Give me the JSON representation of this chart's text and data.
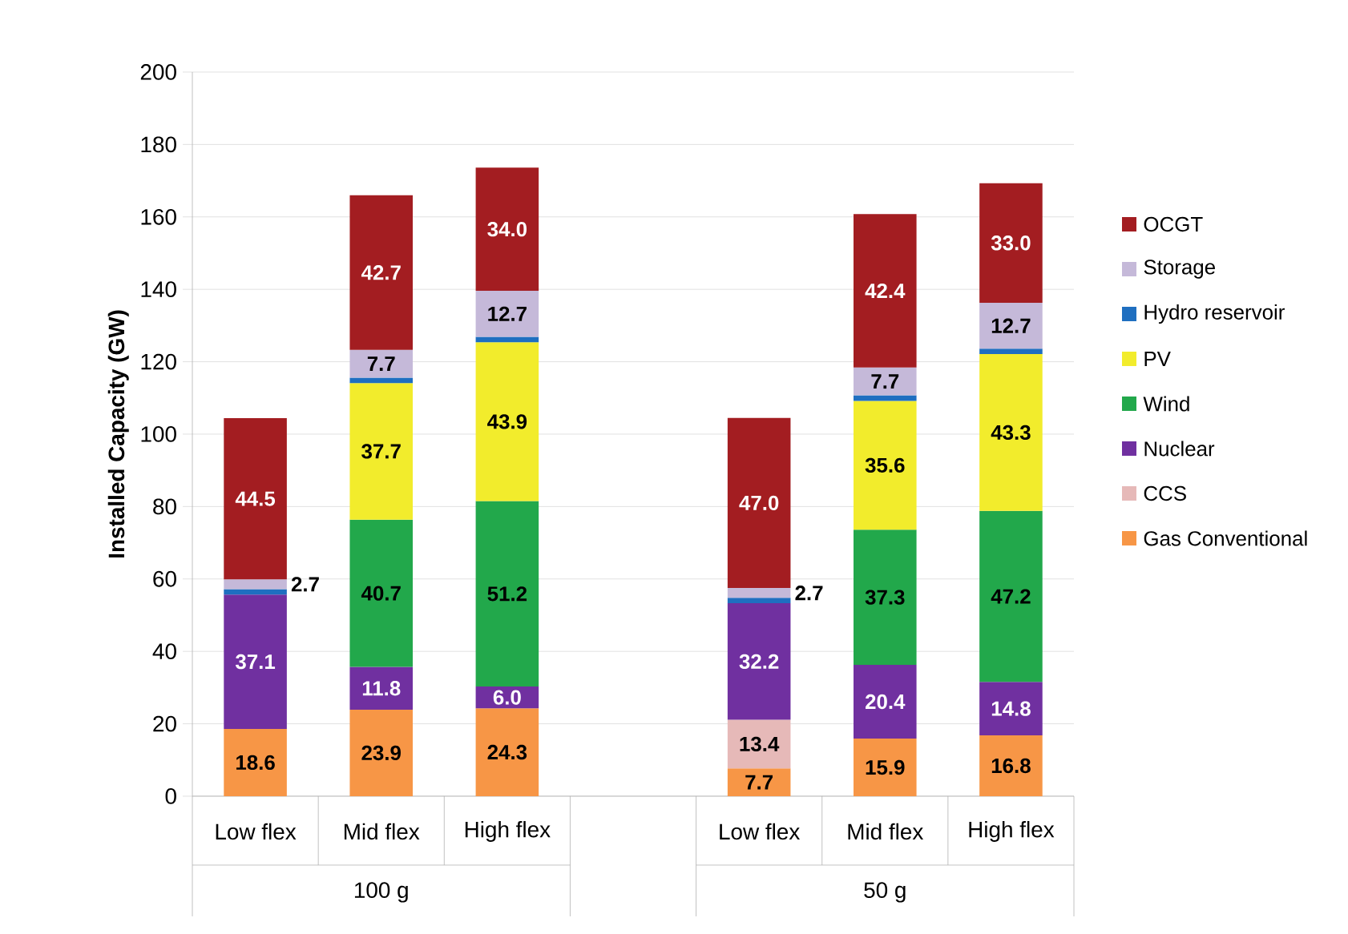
{
  "chart_data": {
    "type": "bar",
    "stacked": true,
    "ylabel": "Installed Capacity (GW)",
    "categories": [
      "Low flex",
      "Mid flex",
      "High flex",
      null,
      "Low flex",
      "Mid flex",
      "High flex"
    ],
    "annotations": [
      "100 g",
      "50 g"
    ],
    "ylim": [
      0,
      200
    ],
    "yticks": [
      0,
      20,
      40,
      60,
      80,
      100,
      120,
      140,
      160,
      180,
      200
    ],
    "grid": "y",
    "legend": "right",
    "series": [
      {
        "name": "Gas Conventional",
        "color": "#f79646",
        "values": [
          18.6,
          23.9,
          24.3,
          null,
          7.7,
          15.9,
          16.8
        ],
        "value_labels": [
          "18.6",
          "23.9",
          "24.3",
          null,
          "7.7",
          "15.9",
          "16.8"
        ]
      },
      {
        "name": "CCS",
        "color": "#e6b9b8",
        "values": [
          null,
          null,
          null,
          null,
          13.4,
          null,
          null
        ],
        "value_labels": [
          null,
          null,
          null,
          null,
          "13.4",
          null,
          null
        ]
      },
      {
        "name": "Nuclear",
        "color": "#7030a0",
        "values": [
          37.1,
          11.8,
          6.0,
          null,
          32.2,
          20.4,
          14.8
        ],
        "value_labels": [
          "37.1",
          "11.8",
          "6.0",
          null,
          "32.2",
          "20.4",
          "14.8"
        ]
      },
      {
        "name": "Wind",
        "color": "#22a84b",
        "values": [
          null,
          40.7,
          51.2,
          null,
          null,
          37.3,
          47.2
        ],
        "value_labels": [
          null,
          "40.7",
          "51.2",
          null,
          null,
          "37.3",
          "47.2"
        ]
      },
      {
        "name": "PV",
        "color": "#f2ec2c",
        "values": [
          null,
          37.7,
          43.9,
          null,
          null,
          35.6,
          43.3
        ],
        "value_labels": [
          null,
          "37.7",
          "43.9",
          null,
          null,
          "35.6",
          "43.3"
        ]
      },
      {
        "name": "Hydro reservoir",
        "color": "#1f6fc0",
        "values": [
          1.5,
          1.5,
          1.5,
          null,
          1.5,
          1.5,
          1.5
        ]
      },
      {
        "name": "Storage",
        "color": "#c5b9d9",
        "values": [
          2.7,
          7.7,
          12.7,
          null,
          2.7,
          7.7,
          12.7
        ],
        "value_labels": [
          "2.7",
          "7.7",
          "12.7",
          null,
          "2.7",
          "7.7",
          "12.7"
        ]
      },
      {
        "name": "OCGT",
        "color": "#a31d21",
        "values": [
          44.5,
          42.7,
          34.0,
          null,
          47.0,
          42.4,
          33.0
        ],
        "value_labels": [
          "44.5",
          "42.7",
          "34.0",
          null,
          "47.0",
          "42.4",
          "33.0"
        ]
      }
    ]
  }
}
